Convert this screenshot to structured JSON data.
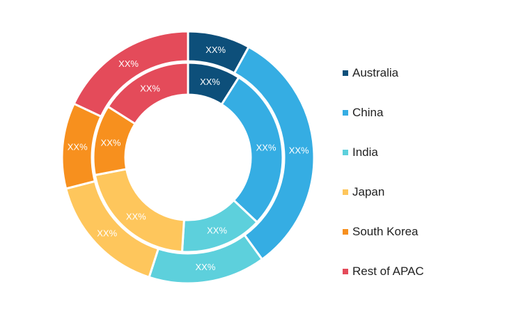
{
  "chart_data": {
    "type": "pie",
    "variant": "nested-donut",
    "legend_position": "right",
    "categories": [
      "Australia",
      "China",
      "India",
      "Japan",
      "South Korea",
      "Rest of APAC"
    ],
    "colors": [
      "#0d4f7a",
      "#35ade3",
      "#5dd0dc",
      "#fec65c",
      "#f7901e",
      "#e44b5a"
    ],
    "series": [
      {
        "ring": "outer",
        "values": [
          8,
          32,
          15,
          16,
          11,
          18
        ],
        "labels": [
          "XX%",
          "XX%",
          "XX%",
          "XX%",
          "XX%",
          "XX%"
        ]
      },
      {
        "ring": "inner",
        "values": [
          9,
          28,
          14,
          21,
          12,
          16
        ],
        "labels": [
          "XX%",
          "XX%",
          "XX%",
          "XX%",
          "XX%",
          "XX%"
        ]
      }
    ]
  }
}
